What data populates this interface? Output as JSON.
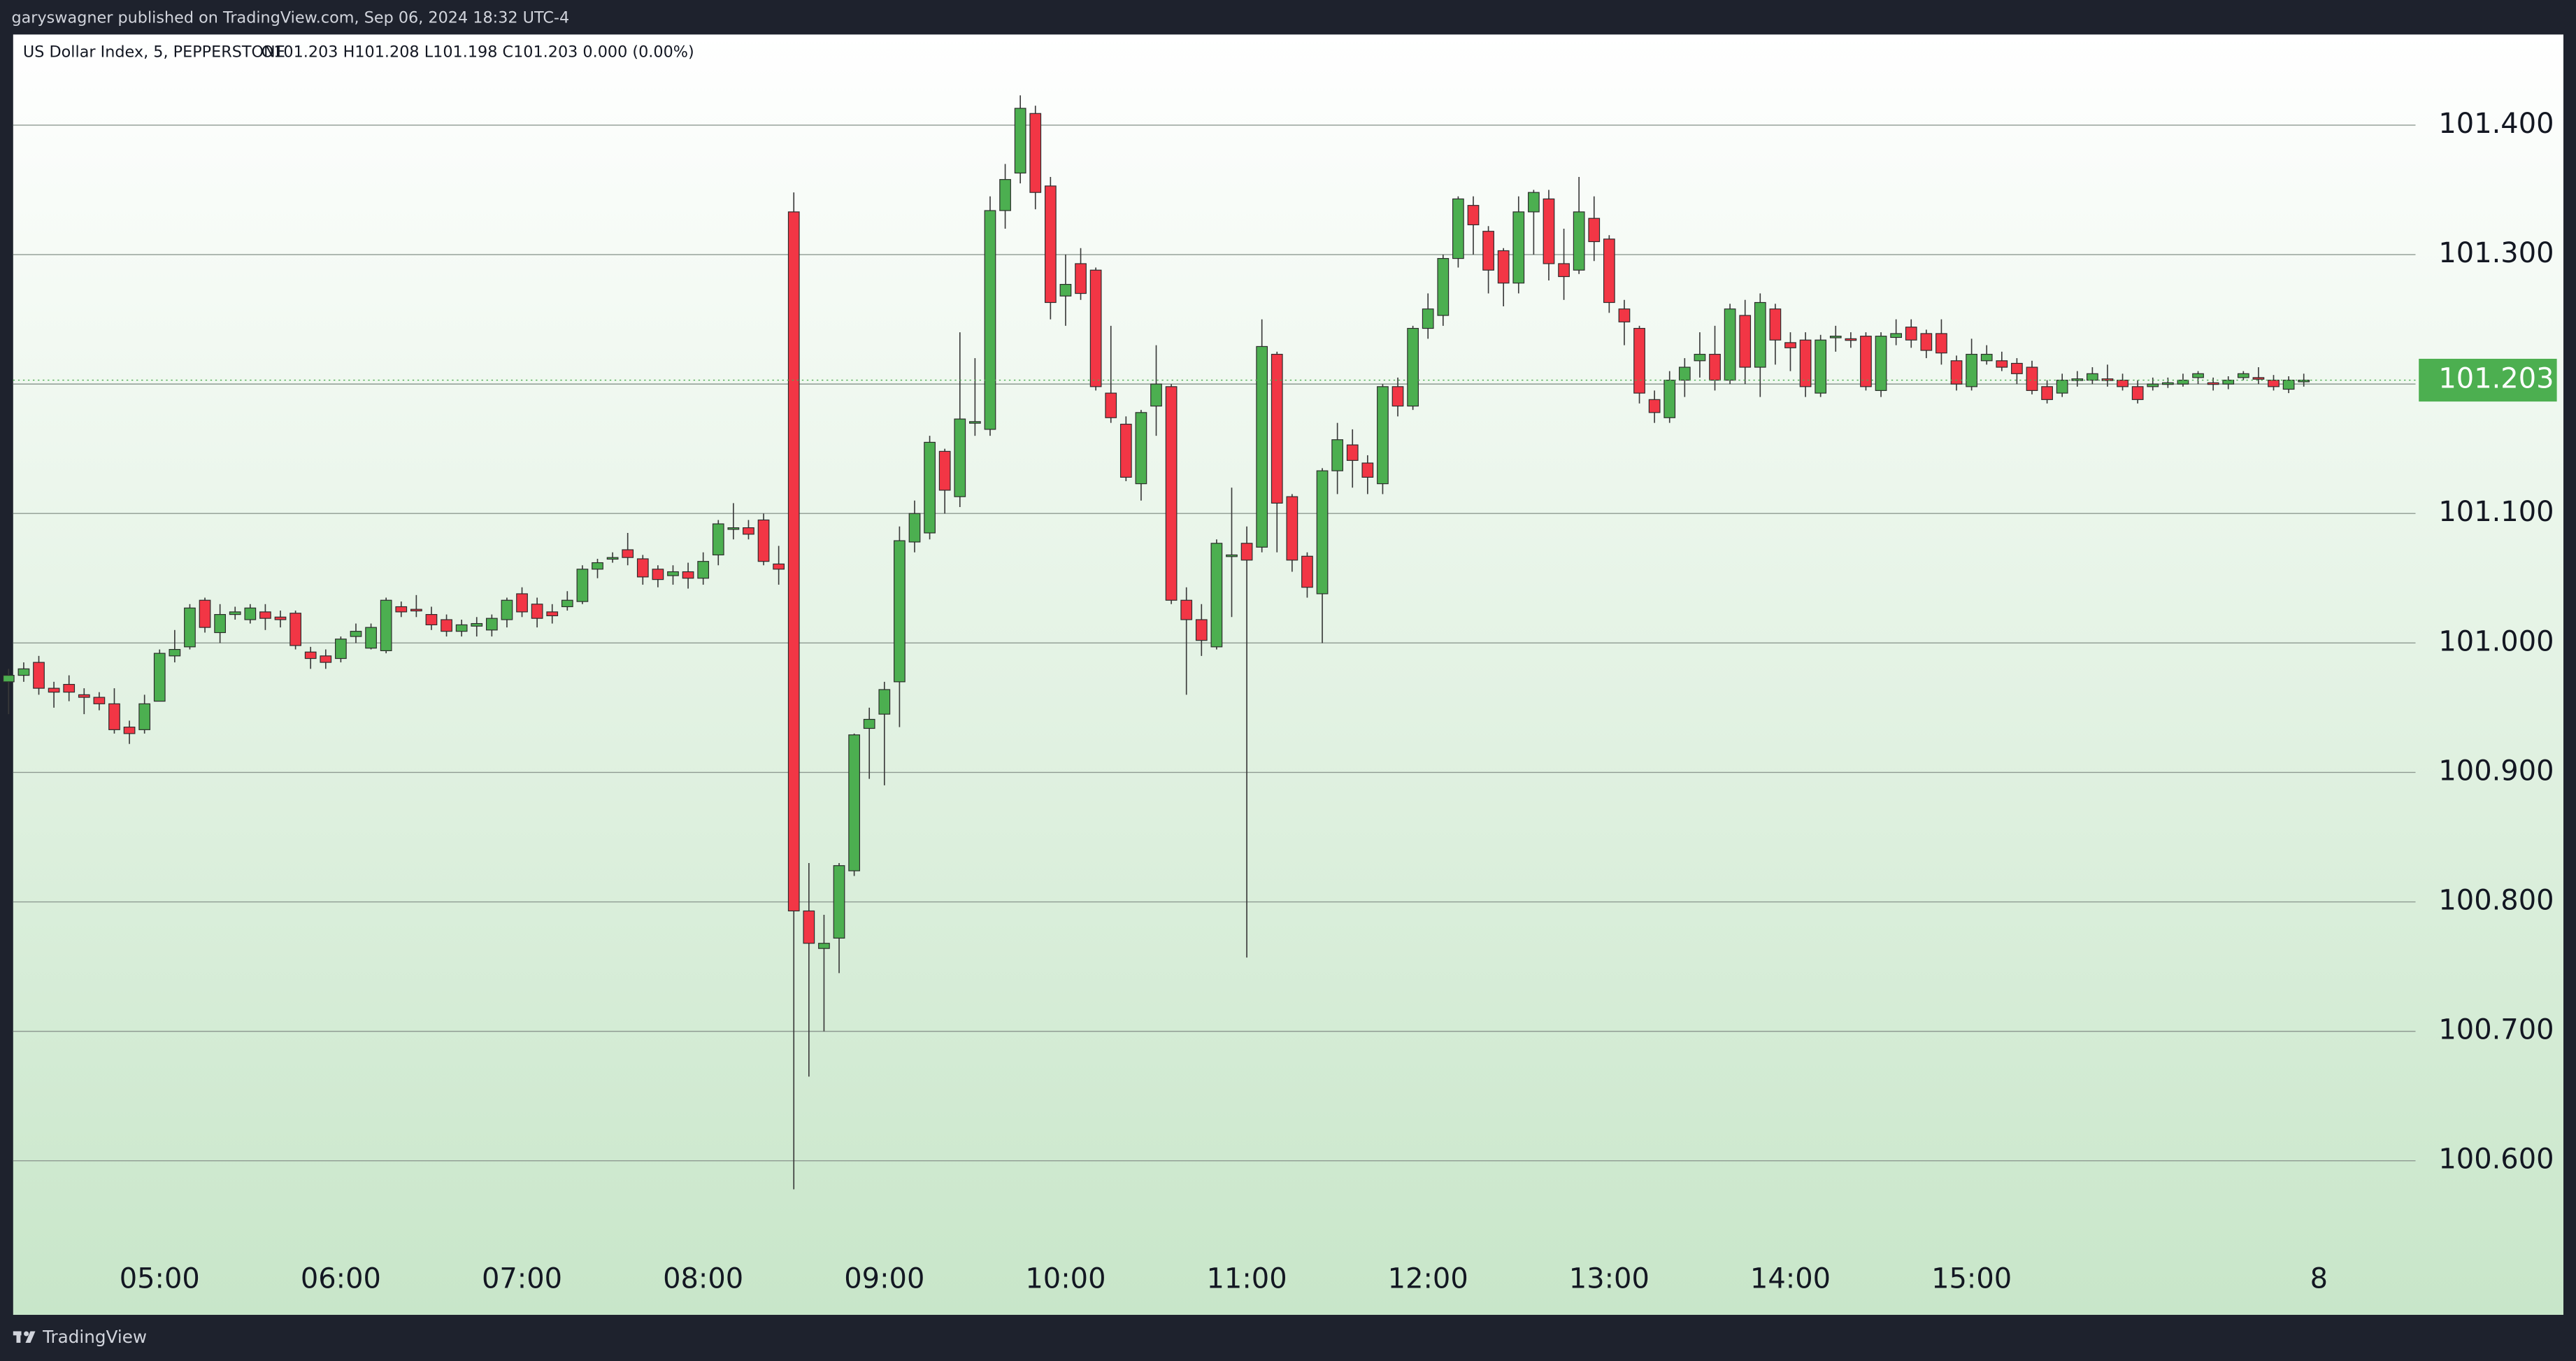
{
  "top_bar": {
    "text": "garyswagner published on TradingView.com, Sep 06, 2024 18:32 UTC-4"
  },
  "footer": {
    "brand": "TradingView"
  },
  "chart_data": {
    "type": "candlestick",
    "title": "US Dollar Index, 5, PEPPERSTONE",
    "subtitle": "O101.203  H101.208  L101.198  C101.203  0.000 (0.00%)",
    "up_color": "#4caf50",
    "down_color": "#f23645",
    "open": [
      100.97,
      100.975,
      100.985,
      100.965,
      100.968,
      100.96,
      100.958,
      100.953,
      100.935,
      100.933,
      100.955,
      100.99,
      100.997,
      101.033,
      101.008,
      101.022,
      101.018,
      101.024,
      101.02,
      101.023,
      100.993,
      100.99,
      100.988,
      101.005,
      100.996,
      100.994,
      101.028,
      101.026,
      101.022,
      101.018,
      101.009,
      101.013,
      101.01,
      101.018,
      101.038,
      101.03,
      101.024,
      101.028,
      101.032,
      101.057,
      101.065,
      101.072,
      101.065,
      101.057,
      101.052,
      101.055,
      101.05,
      101.068,
      101.088,
      101.089,
      101.095,
      101.061,
      101.333,
      100.793,
      100.764,
      100.772,
      100.824,
      100.934,
      100.945,
      100.97,
      101.078,
      101.085,
      101.148,
      101.113,
      101.17,
      101.165,
      101.334,
      101.363,
      101.409,
      101.353,
      101.268,
      101.293,
      101.288,
      101.193,
      101.169,
      101.123,
      101.183,
      101.198,
      101.033,
      101.018,
      100.997,
      101.067,
      101.077,
      101.074,
      101.223,
      101.113,
      101.067,
      101.038,
      101.133,
      101.153,
      101.139,
      101.123,
      101.198,
      101.183,
      101.243,
      101.253,
      101.297,
      101.338,
      101.318,
      101.303,
      101.278,
      101.333,
      101.343,
      101.293,
      101.288,
      101.328,
      101.312,
      101.258,
      101.243,
      101.188,
      101.174,
      101.203,
      101.218,
      101.223,
      101.203,
      101.253,
      101.213,
      101.258,
      101.232,
      101.234,
      101.193,
      101.236,
      101.235,
      101.237,
      101.195,
      101.236,
      101.244,
      101.239,
      101.239,
      101.218,
      101.198,
      101.218,
      101.218,
      101.216,
      101.213,
      101.198,
      101.193,
      101.203,
      101.203,
      101.204,
      101.203,
      101.198,
      101.198,
      101.2,
      101.2,
      101.205,
      101.201,
      101.2,
      101.205,
      101.205,
      101.203,
      101.196,
      101.203
    ],
    "high": [
      100.98,
      100.985,
      100.99,
      100.97,
      100.975,
      100.965,
      100.962,
      100.965,
      100.94,
      100.96,
      100.995,
      101.01,
      101.03,
      101.035,
      101.03,
      101.028,
      101.03,
      101.03,
      101.025,
      101.025,
      100.997,
      100.995,
      101.005,
      101.015,
      101.015,
      101.035,
      101.032,
      101.037,
      101.028,
      101.022,
      101.018,
      101.02,
      101.022,
      101.035,
      101.043,
      101.035,
      101.03,
      101.04,
      101.06,
      101.065,
      101.07,
      101.085,
      101.068,
      101.06,
      101.06,
      101.062,
      101.07,
      101.095,
      101.108,
      101.095,
      101.1,
      101.075,
      101.348,
      100.83,
      100.79,
      100.83,
      100.93,
      100.95,
      100.97,
      101.09,
      101.11,
      101.16,
      101.15,
      101.24,
      101.22,
      101.345,
      101.37,
      101.423,
      101.415,
      101.36,
      101.3,
      101.305,
      101.29,
      101.245,
      101.175,
      101.18,
      101.23,
      101.2,
      101.043,
      101.03,
      101.08,
      101.12,
      101.09,
      101.25,
      101.225,
      101.115,
      101.07,
      101.135,
      101.17,
      101.165,
      101.145,
      101.2,
      101.205,
      101.245,
      101.27,
      101.3,
      101.345,
      101.345,
      101.322,
      101.305,
      101.345,
      101.35,
      101.35,
      101.32,
      101.36,
      101.345,
      101.315,
      101.265,
      101.245,
      101.195,
      101.21,
      101.22,
      101.24,
      101.245,
      101.262,
      101.265,
      101.27,
      101.262,
      101.24,
      101.24,
      101.238,
      101.245,
      101.24,
      101.24,
      101.24,
      101.25,
      101.25,
      101.242,
      101.25,
      101.222,
      101.235,
      101.23,
      101.225,
      101.22,
      101.218,
      101.203,
      101.208,
      101.21,
      101.213,
      101.215,
      101.208,
      101.203,
      101.205,
      101.205,
      101.208,
      101.21,
      101.205,
      101.206,
      101.21,
      101.213,
      101.207,
      101.206,
      101.208
    ],
    "low": [
      100.945,
      100.97,
      100.96,
      100.95,
      100.955,
      100.945,
      100.948,
      100.93,
      100.922,
      100.93,
      100.955,
      100.985,
      100.995,
      101.008,
      101.0,
      101.018,
      101.015,
      101.01,
      101.012,
      100.995,
      100.98,
      100.98,
      100.985,
      101.0,
      100.995,
      100.992,
      101.02,
      101.02,
      101.01,
      101.005,
      101.005,
      101.005,
      101.005,
      101.012,
      101.02,
      101.012,
      101.015,
      101.025,
      101.03,
      101.05,
      101.062,
      101.06,
      101.045,
      101.043,
      101.045,
      101.042,
      101.045,
      101.06,
      101.08,
      101.08,
      101.06,
      101.045,
      100.578,
      100.665,
      100.7,
      100.745,
      100.82,
      100.895,
      100.89,
      100.935,
      101.07,
      101.08,
      101.1,
      101.105,
      101.16,
      101.16,
      101.32,
      101.355,
      101.335,
      101.25,
      101.245,
      101.265,
      101.195,
      101.17,
      101.125,
      101.11,
      101.16,
      101.03,
      100.96,
      100.99,
      100.995,
      101.02,
      100.757,
      101.07,
      101.07,
      101.055,
      101.035,
      101.0,
      101.115,
      101.12,
      101.115,
      101.115,
      101.175,
      101.18,
      101.235,
      101.245,
      101.29,
      101.3,
      101.27,
      101.26,
      101.27,
      101.3,
      101.28,
      101.265,
      101.285,
      101.295,
      101.255,
      101.23,
      101.185,
      101.17,
      101.17,
      101.19,
      101.205,
      101.195,
      101.2,
      101.2,
      101.19,
      101.215,
      101.21,
      101.19,
      101.19,
      101.225,
      101.228,
      101.195,
      101.19,
      101.23,
      101.228,
      101.22,
      101.215,
      101.195,
      101.195,
      101.215,
      101.21,
      101.2,
      101.192,
      101.185,
      101.19,
      101.198,
      101.2,
      101.198,
      101.195,
      101.185,
      101.195,
      101.197,
      101.198,
      101.2,
      101.195,
      101.196,
      101.203,
      101.2,
      101.195,
      101.193,
      101.198
    ],
    "close": [
      100.975,
      100.98,
      100.965,
      100.962,
      100.962,
      100.958,
      100.953,
      100.933,
      100.93,
      100.953,
      100.992,
      100.995,
      101.027,
      101.012,
      101.022,
      101.024,
      101.027,
      101.019,
      101.018,
      100.998,
      100.988,
      100.985,
      101.003,
      101.009,
      101.012,
      101.033,
      101.024,
      101.025,
      101.014,
      101.009,
      101.014,
      101.015,
      101.019,
      101.033,
      101.024,
      101.019,
      101.021,
      101.033,
      101.057,
      101.062,
      101.066,
      101.066,
      101.051,
      101.049,
      101.055,
      101.05,
      101.063,
      101.092,
      101.089,
      101.084,
      101.063,
      101.057,
      100.793,
      100.768,
      100.768,
      100.828,
      100.929,
      100.941,
      100.964,
      101.079,
      101.1,
      101.155,
      101.118,
      101.173,
      101.171,
      101.334,
      101.358,
      101.413,
      101.348,
      101.263,
      101.277,
      101.27,
      101.198,
      101.174,
      101.128,
      101.178,
      101.2,
      101.033,
      101.018,
      101.002,
      101.077,
      101.068,
      101.064,
      101.229,
      101.108,
      101.064,
      101.043,
      101.133,
      101.157,
      101.141,
      101.128,
      101.198,
      101.183,
      101.243,
      101.258,
      101.297,
      101.343,
      101.323,
      101.288,
      101.278,
      101.333,
      101.348,
      101.293,
      101.283,
      101.333,
      101.31,
      101.263,
      101.248,
      101.193,
      101.178,
      101.203,
      101.213,
      101.223,
      101.203,
      101.258,
      101.213,
      101.263,
      101.234,
      101.228,
      101.198,
      101.234,
      101.237,
      101.234,
      101.198,
      101.237,
      101.239,
      101.234,
      101.226,
      101.224,
      101.2,
      101.223,
      101.223,
      101.213,
      101.208,
      101.195,
      101.188,
      101.203,
      101.204,
      101.208,
      101.203,
      101.198,
      101.188,
      101.2,
      101.201,
      101.203,
      101.208,
      101.2,
      101.203,
      101.208,
      101.204,
      101.198,
      101.203,
      101.203
    ],
    "last_price": 101.203,
    "last_price_color": "#4caf50",
    "xlim": [
      0.3,
      159.4
    ],
    "xticks": [
      {
        "value": 10,
        "label": "05:00"
      },
      {
        "value": 22,
        "label": "06:00"
      },
      {
        "value": 34,
        "label": "07:00"
      },
      {
        "value": 46,
        "label": "08:00"
      },
      {
        "value": 58,
        "label": "09:00"
      },
      {
        "value": 70,
        "label": "10:00"
      },
      {
        "value": 82,
        "label": "11:00"
      },
      {
        "value": 94,
        "label": "12:00"
      },
      {
        "value": 106,
        "label": "13:00"
      },
      {
        "value": 118,
        "label": "14:00"
      },
      {
        "value": 130,
        "label": "15:00"
      },
      {
        "value": 153,
        "label": "8"
      }
    ],
    "ylim": [
      100.481,
      101.47
    ],
    "yticks": [
      {
        "value": 100.6,
        "label": "100.600"
      },
      {
        "value": 100.7,
        "label": "100.700"
      },
      {
        "value": 100.8,
        "label": "100.800"
      },
      {
        "value": 100.9,
        "label": "100.900"
      },
      {
        "value": 101.0,
        "label": "101.000"
      },
      {
        "value": 101.1,
        "label": "101.100"
      },
      {
        "value": 101.2,
        "label": "101.200"
      },
      {
        "value": 101.3,
        "label": "101.300"
      },
      {
        "value": 101.4,
        "label": "101.400"
      }
    ],
    "grid": true
  }
}
